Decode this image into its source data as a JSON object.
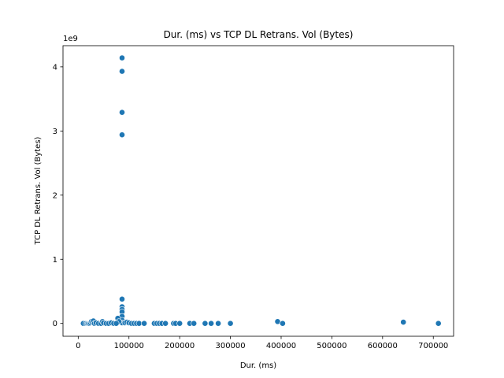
{
  "chart_data": {
    "type": "scatter",
    "title": "Dur. (ms) vs TCP DL Retrans. Vol (Bytes)",
    "xlabel": "Dur. (ms)",
    "ylabel": "TCP DL Retrans. Vol (Bytes)",
    "y_scale_label": "1e9",
    "xlim": [
      -30000,
      740000
    ],
    "ylim": [
      -200000000.0,
      4330000000.0
    ],
    "x_ticks": [
      0,
      100000,
      200000,
      300000,
      400000,
      500000,
      600000,
      700000
    ],
    "x_tick_labels": [
      "0",
      "100000",
      "200000",
      "300000",
      "400000",
      "500000",
      "600000",
      "700000"
    ],
    "y_ticks": [
      0,
      1000000000.0,
      2000000000.0,
      3000000000.0,
      4000000000.0
    ],
    "y_tick_labels": [
      "0",
      "1",
      "2",
      "3",
      "4"
    ],
    "grid": false,
    "point_color": "#1f77b4",
    "points": [
      [
        86400,
        4140000000.0
      ],
      [
        86400,
        3930000000.0
      ],
      [
        86400,
        3290000000.0
      ],
      [
        86400,
        2940000000.0
      ],
      [
        86400,
        380000000.0
      ],
      [
        86400,
        260000000.0
      ],
      [
        86400,
        220000000.0
      ],
      [
        86400,
        180000000.0
      ],
      [
        86400,
        110000000.0
      ],
      [
        86400,
        50000000.0
      ],
      [
        86400,
        10000000.0
      ],
      [
        78000,
        80000000.0
      ],
      [
        80000,
        30000000.0
      ],
      [
        10000,
        0.0
      ],
      [
        15000,
        0.0
      ],
      [
        18000,
        0.0
      ],
      [
        20000,
        0.0
      ],
      [
        22000,
        0.0
      ],
      [
        24000,
        10000000.0
      ],
      [
        26000,
        30000000.0
      ],
      [
        28000,
        20000000.0
      ],
      [
        30000,
        40000000.0
      ],
      [
        32000,
        0.0
      ],
      [
        35000,
        10000000.0
      ],
      [
        40000,
        0.0
      ],
      [
        45000,
        0.0
      ],
      [
        48000,
        30000000.0
      ],
      [
        50000,
        10000000.0
      ],
      [
        55000,
        0.0
      ],
      [
        60000,
        0.0
      ],
      [
        65000,
        10000000.0
      ],
      [
        70000,
        0.0
      ],
      [
        75000,
        0.0
      ],
      [
        92000,
        10000000.0
      ],
      [
        96000,
        20000000.0
      ],
      [
        100000,
        10000000.0
      ],
      [
        105000,
        0.0
      ],
      [
        110000,
        0.0
      ],
      [
        115000,
        0.0
      ],
      [
        120000,
        0.0
      ],
      [
        130000,
        0.0
      ],
      [
        150000,
        0.0
      ],
      [
        155000,
        0.0
      ],
      [
        160000,
        0.0
      ],
      [
        165000,
        0.0
      ],
      [
        172000,
        0.0
      ],
      [
        188000,
        0.0
      ],
      [
        192000,
        0.0
      ],
      [
        200000,
        0.0
      ],
      [
        220000,
        0.0
      ],
      [
        228000,
        0.0
      ],
      [
        250000,
        0.0
      ],
      [
        262000,
        0.0
      ],
      [
        276000,
        0.0
      ],
      [
        300000,
        0.0
      ],
      [
        393000,
        30000000.0
      ],
      [
        403000,
        0.0
      ],
      [
        641000,
        20000000.0
      ],
      [
        710000,
        0.0
      ]
    ]
  }
}
